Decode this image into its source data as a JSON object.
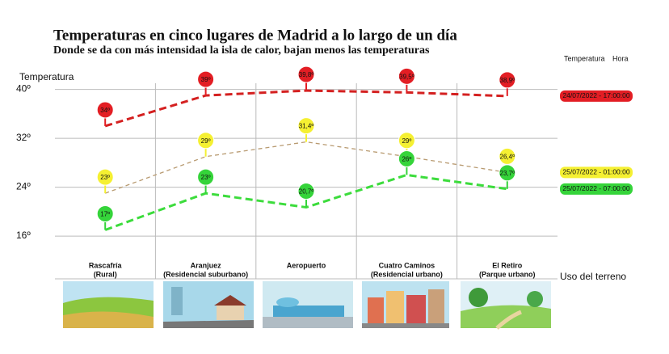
{
  "chart_data": {
    "type": "line",
    "title": "Temperaturas en cinco lugares de Madrid a lo largo de un día",
    "subtitle": "Donde se da con más intensidad la isla de calor, bajan menos las temperaturas",
    "y_label": "Temperatura",
    "x_label": "Uso del terreno",
    "legend_headers": [
      "Temperatura",
      "Hora"
    ],
    "categories": [
      "Rascafría",
      "Aranjuez",
      "Aeropuerto",
      "Cuatro Caminos",
      "El Retiro"
    ],
    "category_sublabels": [
      "(Rural)",
      "(Residencial suburbano)",
      null,
      "(Residencial urbano)",
      "(Parque urbano)"
    ],
    "ylim": [
      9,
      41
    ],
    "yticks": [
      {
        "value": 40,
        "label": "40º"
      },
      {
        "value": 32,
        "label": "32º"
      },
      {
        "value": 24,
        "label": "24º"
      },
      {
        "value": 16,
        "label": "16º"
      }
    ],
    "grid": true,
    "series": [
      {
        "name": "24/07/2022 - 17:00:00",
        "color": "#e31e24",
        "line_color": "#d42020",
        "line_width": 3,
        "values": [
          34,
          39,
          39.8,
          39.5,
          38.9
        ],
        "value_labels": [
          "34º",
          "39º",
          "39,8º",
          "39,5º",
          "38,9º"
        ]
      },
      {
        "name": "25/07/2022 - 01:00:00",
        "color": "#f5f032",
        "line_color": "#b89a70",
        "line_width": 1.3,
        "values": [
          23,
          29,
          31.4,
          29,
          26.4
        ],
        "value_labels": [
          "23º",
          "29º",
          "31,4º",
          "29º",
          "26,4º"
        ]
      },
      {
        "name": "25/07/2022 - 07:00:00",
        "color": "#35d43a",
        "line_color": "#3cdc3c",
        "line_width": 3,
        "values": [
          17,
          23,
          20.7,
          26,
          23.7
        ],
        "value_labels": [
          "17º",
          "23º",
          "20,7º",
          "26º",
          "23,7º"
        ]
      }
    ]
  }
}
